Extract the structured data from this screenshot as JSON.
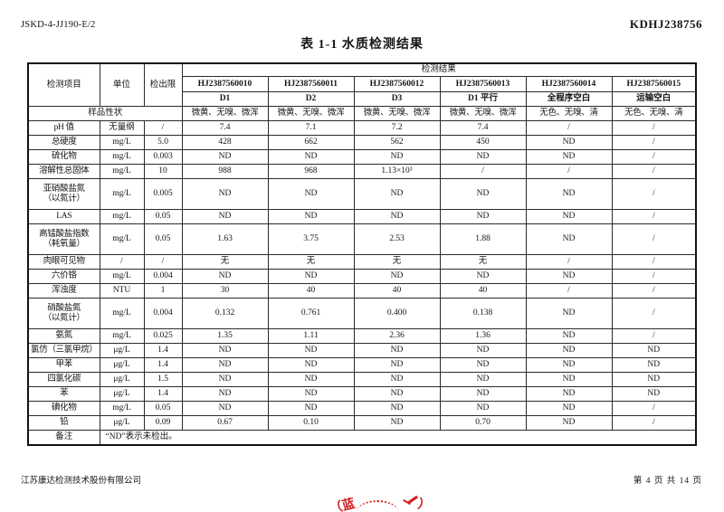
{
  "page": {
    "doc_code": "JSKD-4-JJ190-E/2",
    "report_no": "KDHJ238756",
    "title": "表 1-1  水质检测结果",
    "footer_company": "江苏康达检测技术股份有限公司",
    "footer_page": "第 4 页 共 14 页"
  },
  "seal": {
    "left_fragment": "（蓝",
    "right_fragment": "）"
  },
  "table": {
    "header": {
      "item_label": "检测项目",
      "unit_label": "单位",
      "limit_label": "检出限",
      "result_group_label": "检测结果",
      "sample_ids": [
        "HJ2387560010",
        "HJ2387560011",
        "HJ2387560012",
        "HJ2387560013",
        "HJ2387560014",
        "HJ2387560015"
      ],
      "sample_names": [
        "D1",
        "D2",
        "D3",
        "D1 平行",
        "全程序空白",
        "运输空白"
      ],
      "status_label": "样品性状",
      "status_values": [
        "微黄、无嗅、微浑",
        "微黄、无嗅、微浑",
        "微黄、无嗅、微浑",
        "微黄、无嗅、微浑",
        "无色、无嗅、清",
        "无色、无嗅、清"
      ]
    },
    "rows": [
      {
        "item": "pH 值",
        "unit": "无量纲",
        "limit": "/",
        "values": [
          "7.4",
          "7.1",
          "7.2",
          "7.4",
          "/",
          "/"
        ]
      },
      {
        "item": "总硬度",
        "unit": "mg/L",
        "limit": "5.0",
        "values": [
          "428",
          "662",
          "562",
          "450",
          "ND",
          "/"
        ]
      },
      {
        "item": "硫化物",
        "unit": "mg/L",
        "limit": "0.003",
        "values": [
          "ND",
          "ND",
          "ND",
          "ND",
          "ND",
          "/"
        ]
      },
      {
        "item": "溶解性总固体",
        "unit": "mg/L",
        "limit": "10",
        "values": [
          "988",
          "968",
          "1.13×10³",
          "/",
          "/",
          "/"
        ]
      },
      {
        "item": "亚硝酸盐氮\n（以氮计）",
        "unit": "mg/L",
        "limit": "0.005",
        "values": [
          "ND",
          "ND",
          "ND",
          "ND",
          "ND",
          "/"
        ]
      },
      {
        "item": "LAS",
        "unit": "mg/L",
        "limit": "0.05",
        "values": [
          "ND",
          "ND",
          "ND",
          "ND",
          "ND",
          "/"
        ]
      },
      {
        "item": "高锰酸盐指数\n（耗氧量）",
        "unit": "mg/L",
        "limit": "0.05",
        "values": [
          "1.63",
          "3.75",
          "2.53",
          "1.88",
          "ND",
          "/"
        ]
      },
      {
        "item": "肉眼可见物",
        "unit": "/",
        "limit": "/",
        "values": [
          "无",
          "无",
          "无",
          "无",
          "/",
          "/"
        ]
      },
      {
        "item": "六价铬",
        "unit": "mg/L",
        "limit": "0.004",
        "values": [
          "ND",
          "ND",
          "ND",
          "ND",
          "ND",
          "/"
        ]
      },
      {
        "item": "浑浊度",
        "unit": "NTU",
        "limit": "1",
        "values": [
          "30",
          "40",
          "40",
          "40",
          "/",
          "/"
        ]
      },
      {
        "item": "硝酸盐氮\n（以氮计）",
        "unit": "mg/L",
        "limit": "0.004",
        "values": [
          "0.132",
          "0.761",
          "0.400",
          "0.138",
          "ND",
          "/"
        ]
      },
      {
        "item": "氨氮",
        "unit": "mg/L",
        "limit": "0.025",
        "values": [
          "1.35",
          "1.11",
          "2.36",
          "1.36",
          "ND",
          "/"
        ]
      },
      {
        "item": "氯仿（三氯甲烷）",
        "unit": "μg/L",
        "limit": "1.4",
        "values": [
          "ND",
          "ND",
          "ND",
          "ND",
          "ND",
          "ND"
        ]
      },
      {
        "item": "甲苯",
        "unit": "μg/L",
        "limit": "1.4",
        "values": [
          "ND",
          "ND",
          "ND",
          "ND",
          "ND",
          "ND"
        ]
      },
      {
        "item": "四氯化碳",
        "unit": "μg/L",
        "limit": "1.5",
        "values": [
          "ND",
          "ND",
          "ND",
          "ND",
          "ND",
          "ND"
        ]
      },
      {
        "item": "苯",
        "unit": "μg/L",
        "limit": "1.4",
        "values": [
          "ND",
          "ND",
          "ND",
          "ND",
          "ND",
          "ND"
        ]
      },
      {
        "item": "碘化物",
        "unit": "mg/L",
        "limit": "0.05",
        "values": [
          "ND",
          "ND",
          "ND",
          "ND",
          "ND",
          "/"
        ]
      },
      {
        "item": "铅",
        "unit": "μg/L",
        "limit": "0.09",
        "values": [
          "0.67",
          "0.10",
          "ND",
          "0.70",
          "ND",
          "/"
        ]
      }
    ],
    "remark_label": "备注",
    "remark_text": "“ND”表示未检出。"
  }
}
